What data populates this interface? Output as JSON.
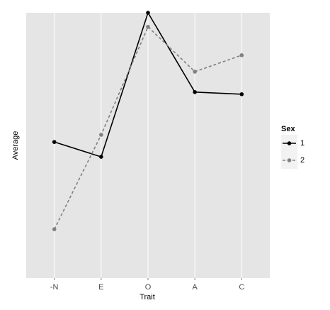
{
  "chart_data": {
    "type": "line",
    "x_label": "Trait",
    "y_label": "Average",
    "categories": [
      "-N",
      "E",
      "O",
      "A",
      "C"
    ],
    "series": [
      {
        "name": "1",
        "color": "#000000",
        "dash": "solid",
        "values": [
          51.3,
          45.7,
          100,
          70.1,
          69.3
        ]
      },
      {
        "name": "2",
        "color": "#808080",
        "dash": "dashed",
        "values": [
          18.4,
          54.0,
          94.7,
          77.8,
          84.0
        ]
      }
    ],
    "ylim": [
      0,
      100
    ],
    "grid": true,
    "legend_title": "Sex",
    "legend_position": "right"
  }
}
